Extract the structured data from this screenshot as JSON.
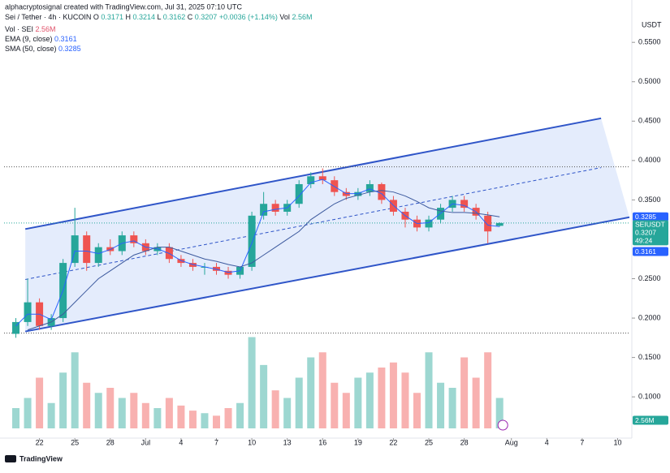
{
  "chart_data": {
    "type": "candlestick",
    "header": "alphacryptosignal created with TradingView.com, Jul 31, 2025 07:10 UTC",
    "symbol": "Sei / Tether · 4h · KUCOIN",
    "ohlc_legend": {
      "o_label": "O",
      "open": "0.3171",
      "h_label": "H",
      "high": "0.3214",
      "l_label": "L",
      "low": "0.3162",
      "c_label": "C",
      "close": "0.3207",
      "change": "+0.0036 (+1.14%)",
      "vol_label": "Vol",
      "volume": "2.56M"
    },
    "indicators": [
      {
        "name": "Vol · SEI",
        "value": "2.56M",
        "color": "#e0526a"
      },
      {
        "name": "EMA (9, close)",
        "value": "0.3161",
        "color": "#2962ff"
      },
      {
        "name": "SMA (50, close)",
        "value": "0.3285",
        "color": "#2962ff"
      }
    ],
    "currency": "USDT",
    "price_tag": {
      "symbol": "SEIUSDT",
      "price": "0.3207",
      "countdown": "49:24"
    },
    "sma_tag": "0.3285",
    "ema_tag": "0.3161",
    "volume_tag": "2.56M",
    "brand": "TradingView",
    "up_color": "#26a69a",
    "down_color": "#ef5350",
    "x": [
      -2,
      -1,
      0,
      1,
      2,
      3,
      4,
      5,
      6,
      7,
      8,
      9,
      10,
      11,
      12,
      13,
      14,
      15,
      16,
      17,
      18,
      19,
      20,
      21,
      22,
      23,
      24,
      25,
      26,
      27,
      28,
      29,
      30,
      31,
      32,
      33,
      34,
      35,
      36,
      37,
      38,
      39
    ],
    "open": [
      0.18,
      0.195,
      0.22,
      0.19,
      0.2,
      0.27,
      0.305,
      0.27,
      0.29,
      0.285,
      0.305,
      0.295,
      0.285,
      0.29,
      0.275,
      0.27,
      0.265,
      0.265,
      0.26,
      0.255,
      0.265,
      0.33,
      0.345,
      0.335,
      0.345,
      0.37,
      0.38,
      0.375,
      0.36,
      0.355,
      0.36,
      0.37,
      0.35,
      0.335,
      0.325,
      0.315,
      0.325,
      0.34,
      0.35,
      0.34,
      0.33,
      0.3171
    ],
    "high": [
      0.2,
      0.25,
      0.225,
      0.205,
      0.275,
      0.34,
      0.31,
      0.295,
      0.3,
      0.31,
      0.31,
      0.3,
      0.295,
      0.295,
      0.28,
      0.275,
      0.27,
      0.27,
      0.265,
      0.265,
      0.335,
      0.36,
      0.35,
      0.35,
      0.375,
      0.385,
      0.39,
      0.38,
      0.365,
      0.365,
      0.375,
      0.372,
      0.355,
      0.34,
      0.33,
      0.33,
      0.345,
      0.355,
      0.355,
      0.345,
      0.335,
      0.3214
    ],
    "low": [
      0.175,
      0.19,
      0.185,
      0.185,
      0.195,
      0.265,
      0.26,
      0.265,
      0.28,
      0.28,
      0.29,
      0.28,
      0.28,
      0.27,
      0.265,
      0.26,
      0.255,
      0.255,
      0.25,
      0.25,
      0.26,
      0.325,
      0.33,
      0.33,
      0.34,
      0.365,
      0.37,
      0.355,
      0.35,
      0.35,
      0.355,
      0.345,
      0.33,
      0.315,
      0.31,
      0.31,
      0.32,
      0.335,
      0.335,
      0.325,
      0.295,
      0.3162
    ],
    "close": [
      0.195,
      0.22,
      0.19,
      0.2,
      0.27,
      0.305,
      0.27,
      0.29,
      0.285,
      0.305,
      0.295,
      0.285,
      0.29,
      0.275,
      0.27,
      0.265,
      0.265,
      0.26,
      0.255,
      0.265,
      0.33,
      0.345,
      0.335,
      0.345,
      0.37,
      0.38,
      0.375,
      0.36,
      0.355,
      0.36,
      0.37,
      0.35,
      0.335,
      0.325,
      0.315,
      0.325,
      0.34,
      0.35,
      0.34,
      0.33,
      0.31,
      0.3207
    ],
    "volumes": [
      8,
      12,
      20,
      10,
      22,
      30,
      18,
      14,
      16,
      12,
      14,
      10,
      8,
      12,
      9,
      7,
      6,
      5,
      8,
      10,
      36,
      25,
      15,
      12,
      20,
      28,
      30,
      18,
      14,
      20,
      22,
      24,
      26,
      22,
      14,
      30,
      18,
      16,
      28,
      20,
      30,
      12
    ],
    "series": [
      {
        "name": "EMA",
        "color": "#2962ff",
        "values": [
          0.19,
          0.205,
          0.205,
          0.198,
          0.235,
          0.285,
          0.285,
          0.282,
          0.287,
          0.295,
          0.298,
          0.29,
          0.288,
          0.282,
          0.273,
          0.268,
          0.265,
          0.262,
          0.258,
          0.26,
          0.295,
          0.335,
          0.338,
          0.34,
          0.355,
          0.372,
          0.376,
          0.367,
          0.358,
          0.358,
          0.364,
          0.358,
          0.343,
          0.33,
          0.32,
          0.321,
          0.333,
          0.345,
          0.343,
          0.335,
          0.318,
          0.3161
        ]
      },
      {
        "name": "SMA",
        "color": "#3d5a9e",
        "values": [
          null,
          0.185,
          0.19,
          0.195,
          0.205,
          0.22,
          0.235,
          0.25,
          0.26,
          0.27,
          0.28,
          0.285,
          0.29,
          0.29,
          0.285,
          0.28,
          0.275,
          0.272,
          0.268,
          0.265,
          0.27,
          0.28,
          0.29,
          0.3,
          0.31,
          0.325,
          0.335,
          0.345,
          0.352,
          0.356,
          0.36,
          0.362,
          0.36,
          0.355,
          0.348,
          0.34,
          0.336,
          0.334,
          0.334,
          0.333,
          0.331,
          0.3285
        ]
      }
    ],
    "channel": {
      "upper": [
        [
          -1.2,
          0.313
        ],
        [
          47.6,
          0.4536
        ]
      ],
      "lower": [
        [
          -1.2,
          0.183
        ],
        [
          50,
          0.328
        ]
      ],
      "middle": [
        [
          -1.2,
          0.249
        ],
        [
          47.6,
          0.391
        ]
      ],
      "color": "#2f55c8",
      "fill": "#dde7fb"
    },
    "levels": [
      0.392,
      0.181
    ],
    "xlim": [
      -3,
      50
    ],
    "ylim": [
      0.06,
      0.578
    ],
    "y2lim": [
      0,
      40
    ],
    "xticks": [
      {
        "value": 0,
        "label": "22"
      },
      {
        "value": 3,
        "label": "25"
      },
      {
        "value": 6,
        "label": "28"
      },
      {
        "value": 9,
        "label": "Jul"
      },
      {
        "value": 12,
        "label": "4"
      },
      {
        "value": 15,
        "label": "7"
      },
      {
        "value": 18,
        "label": "10"
      },
      {
        "value": 21,
        "label": "13"
      },
      {
        "value": 24,
        "label": "16"
      },
      {
        "value": 27,
        "label": "19"
      },
      {
        "value": 30,
        "label": "22"
      },
      {
        "value": 33,
        "label": "25"
      },
      {
        "value": 36,
        "label": "28"
      },
      {
        "value": 40,
        "label": "Aug"
      },
      {
        "value": 43,
        "label": "4"
      },
      {
        "value": 46,
        "label": "7"
      },
      {
        "value": 49,
        "label": "10"
      }
    ],
    "yticks": [
      {
        "value": 0.1,
        "label": "0.1000"
      },
      {
        "value": 0.15,
        "label": "0.1500"
      },
      {
        "value": 0.2,
        "label": "0.2000"
      },
      {
        "value": 0.25,
        "label": "0.2500"
      },
      {
        "value": 0.35,
        "label": "0.3500"
      },
      {
        "value": 0.4,
        "label": "0.4000"
      },
      {
        "value": 0.45,
        "label": "0.4500"
      },
      {
        "value": 0.5,
        "label": "0.5000"
      },
      {
        "value": 0.55,
        "label": "0.5500"
      }
    ]
  }
}
